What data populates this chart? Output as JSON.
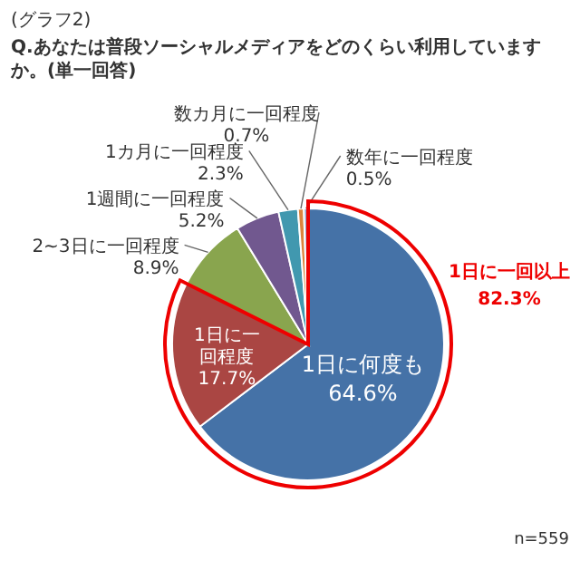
{
  "chart_data": {
    "type": "pie",
    "title": "(グラフ2)",
    "subtitle": "Q.あなたは普段ソーシャルメディアをどのくらい利用していますか。(単一回答)",
    "categories": [
      "1日に何度も",
      "1日に一回程度",
      "2~3日に一回程度",
      "1週間に一回程度",
      "1カ月に一回程度",
      "数カ月に一回程度",
      "数年に一回程度"
    ],
    "values": [
      64.6,
      17.7,
      8.9,
      5.2,
      2.3,
      0.7,
      0.5
    ],
    "colors": [
      "#4572a7",
      "#aa4643",
      "#89a54e",
      "#71588f",
      "#4198af",
      "#db843d",
      "#93a9cf"
    ],
    "value_labels": [
      "64.6%",
      "17.7%",
      "8.9%",
      "5.2%",
      "2.3%",
      "0.7%",
      "0.5%"
    ],
    "annotations": [
      "1日に一回以上 82.3%",
      "n=559"
    ]
  }
}
